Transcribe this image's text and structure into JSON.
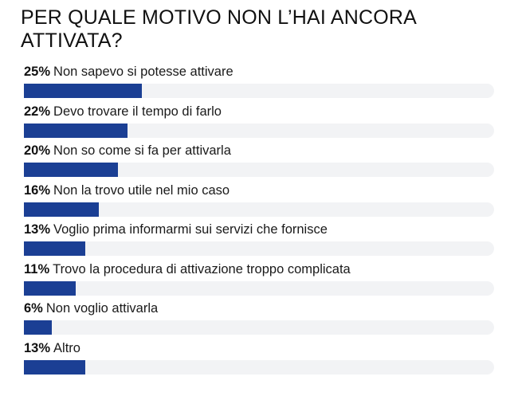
{
  "title": "PER QUALE MOTIVO NON L’HAI ANCORA ATTIVATA?",
  "colors": {
    "bar": "#1b3f94",
    "track": "#f2f3f5",
    "text": "#111111"
  },
  "rows": [
    {
      "pct_label": "25%",
      "label": "Non sapevo si potesse attivare",
      "value": 25
    },
    {
      "pct_label": "22%",
      "label": "Devo trovare il tempo di farlo",
      "value": 22
    },
    {
      "pct_label": "20%",
      "label": "Non so come si fa per attivarla",
      "value": 20
    },
    {
      "pct_label": "16%",
      "label": "Non la trovo utile nel mio caso",
      "value": 16
    },
    {
      "pct_label": "13%",
      "label": "Voglio prima informarmi sui servizi che fornisce",
      "value": 13
    },
    {
      "pct_label": "11%",
      "label": "Trovo la procedura di attivazione troppo complicata",
      "value": 11
    },
    {
      "pct_label": "6%",
      "label": "Non voglio attivarla",
      "value": 6
    },
    {
      "pct_label": "13%",
      "label": "Altro",
      "value": 13
    }
  ],
  "chart_data": {
    "type": "bar",
    "orientation": "horizontal",
    "title": "PER QUALE MOTIVO NON L’HAI ANCORA ATTIVATA?",
    "categories": [
      "Non sapevo si potesse attivare",
      "Devo trovare il tempo di farlo",
      "Non so come si fa per attivarla",
      "Non la trovo utile nel mio caso",
      "Voglio prima informarmi sui servizi che fornisce",
      "Trovo la procedura di attivazione troppo complicata",
      "Non voglio attivarla",
      "Altro"
    ],
    "values": [
      25,
      22,
      20,
      16,
      13,
      11,
      6,
      13
    ],
    "unit": "%",
    "xlabel": "",
    "ylabel": "",
    "xlim": [
      0,
      100
    ],
    "grid": false,
    "legend": null
  }
}
